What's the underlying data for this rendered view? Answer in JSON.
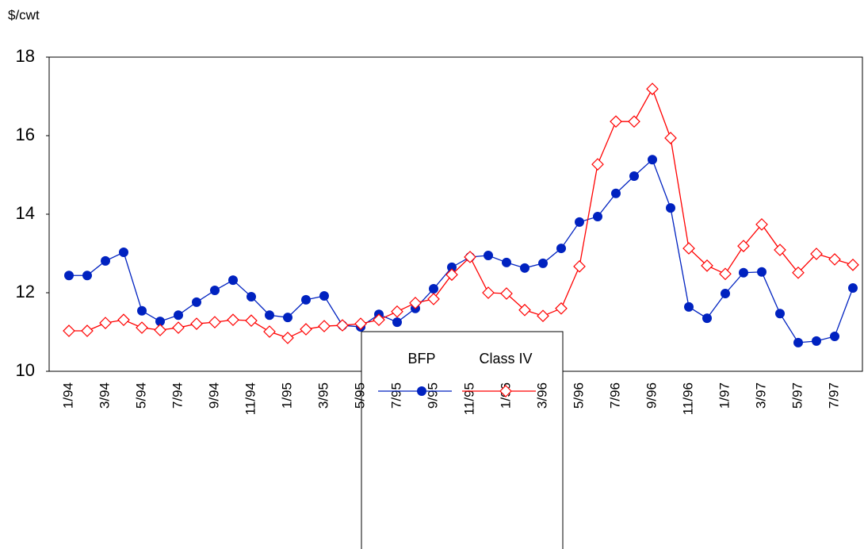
{
  "chart_data": {
    "type": "line",
    "y_label": "$/cwt",
    "categories": [
      "1/94",
      null,
      "3/94",
      null,
      "5/94",
      null,
      "7/94",
      null,
      "9/94",
      null,
      "11/94",
      null,
      "1/95",
      null,
      "3/95",
      null,
      "5/95",
      null,
      "7/95",
      null,
      "9/95",
      null,
      "11/95",
      null,
      "1/96",
      null,
      "3/96",
      null,
      "5/96",
      null,
      "7/96",
      null,
      "9/96",
      null,
      "11/96",
      null,
      "1/97",
      null,
      "3/97",
      null,
      "5/97",
      null,
      "7/97",
      null
    ],
    "series": [
      {
        "name": "BFP",
        "color": "#0022c0",
        "marker": "circle",
        "values": [
          12.44,
          12.44,
          12.81,
          13.03,
          11.54,
          11.27,
          11.43,
          11.76,
          12.06,
          12.32,
          11.9,
          11.43,
          11.37,
          11.82,
          11.92,
          11.17,
          11.13,
          11.45,
          11.25,
          11.6,
          12.1,
          12.65,
          12.91,
          12.95,
          12.77,
          12.63,
          12.75,
          13.13,
          13.8,
          13.94,
          14.53,
          14.97,
          15.39,
          14.16,
          11.64,
          11.35,
          11.98,
          12.51,
          12.53,
          11.47,
          10.73,
          10.77,
          10.89,
          12.12
        ]
      },
      {
        "name": "Class IV",
        "color": "#ff0000",
        "marker": "diamond",
        "values": [
          11.03,
          11.03,
          11.23,
          11.31,
          11.11,
          11.05,
          11.11,
          11.21,
          11.25,
          11.31,
          11.29,
          11.01,
          10.85,
          11.07,
          11.15,
          11.17,
          11.21,
          11.31,
          11.52,
          11.74,
          11.84,
          12.46,
          12.91,
          12.0,
          11.98,
          11.56,
          11.41,
          11.6,
          12.67,
          15.27,
          16.36,
          16.36,
          17.19,
          15.94,
          13.13,
          12.69,
          12.48,
          13.19,
          13.74,
          13.09,
          12.51,
          12.99,
          12.85,
          12.71
        ]
      }
    ],
    "ylim": [
      10,
      18
    ],
    "yticks": [
      10,
      12,
      14,
      16,
      18
    ],
    "grid": false,
    "legend": "bottom"
  }
}
